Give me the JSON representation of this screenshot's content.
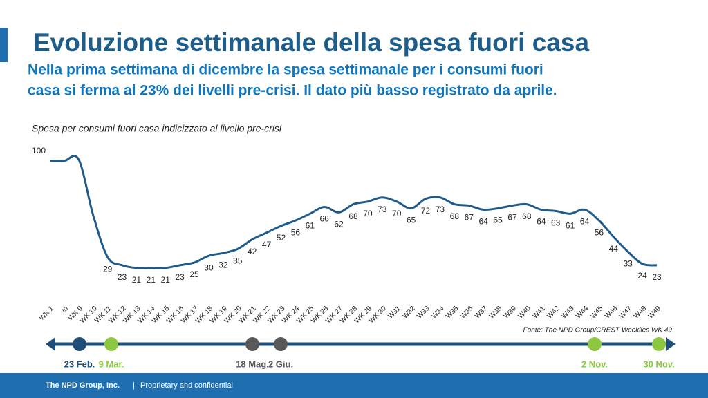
{
  "header": {
    "title": "Evoluzione settimanale della spesa fuori casa",
    "subtitle_lines": [
      "Nella prima settimana di dicembre la spesa settimanale per i consumi fuori",
      "casa si ferma al 23% dei livelli pre-crisi. Il dato più basso registrato da aprile."
    ]
  },
  "chart_data": {
    "type": "line",
    "y_label": "Spesa per consumi fuori casa indicizzato al livello pre-crisi",
    "categories": [
      "WK 1",
      "to",
      "WK 9",
      "WK 10",
      "WK 11",
      "WK 12",
      "WK 13",
      "WK 14",
      "WK 15",
      "WK 16",
      "WK 17",
      "WK 18",
      "WK 19",
      "WK 20",
      "WK 21",
      "WK 22",
      "WK 23",
      "WK 24",
      "WK 25",
      "WK 26",
      "WK 27",
      "WK 28",
      "WK 29",
      "WK 30",
      "W31",
      "W32",
      "W33",
      "W34",
      "W35",
      "W36",
      "W37",
      "W38",
      "W39",
      "W40",
      "W41",
      "W42",
      "W43",
      "W44",
      "W45",
      "W46",
      "W47",
      "W48",
      "W49"
    ],
    "values": [
      100,
      100,
      101,
      60,
      29,
      23,
      21,
      21,
      21,
      23,
      25,
      30,
      32,
      35,
      42,
      47,
      52,
      56,
      61,
      66,
      62,
      68,
      70,
      73,
      70,
      65,
      72,
      73,
      68,
      67,
      64,
      65,
      67,
      68,
      64,
      63,
      61,
      64,
      56,
      44,
      33,
      24,
      23
    ],
    "value_labels": [
      "100",
      null,
      null,
      null,
      "29",
      "23",
      "21",
      "21",
      "21",
      "23",
      "25",
      "30",
      "32",
      "35",
      "42",
      "47",
      "52",
      "56",
      "61",
      "66",
      "62",
      "68",
      "70",
      "73",
      "70",
      "65",
      "72",
      "73",
      "68",
      "67",
      "64",
      "65",
      "67",
      "68",
      "64",
      "63",
      "61",
      "64",
      "56",
      "44",
      "33",
      "24",
      "23"
    ],
    "color": "#1f5c8b",
    "ylim": [
      0,
      105
    ],
    "source": "Fonte: The NPD Group/CREST Weeklies WK 49"
  },
  "timeline": [
    {
      "label": "23 Feb.",
      "color": "#1f4e79"
    },
    {
      "label": "9 Mar.",
      "color": "#8dc63f"
    },
    {
      "label": "18 Mag.",
      "color": "#595959"
    },
    {
      "label": "2 Giu.",
      "color": "#595959"
    },
    {
      "label": "2 Nov.",
      "color": "#8dc63f"
    },
    {
      "label": "30 Nov.",
      "color": "#8dc63f"
    }
  ],
  "footer": {
    "company": "The NPD Group, Inc.",
    "separator": "|",
    "note": "Proprietary and confidential"
  }
}
